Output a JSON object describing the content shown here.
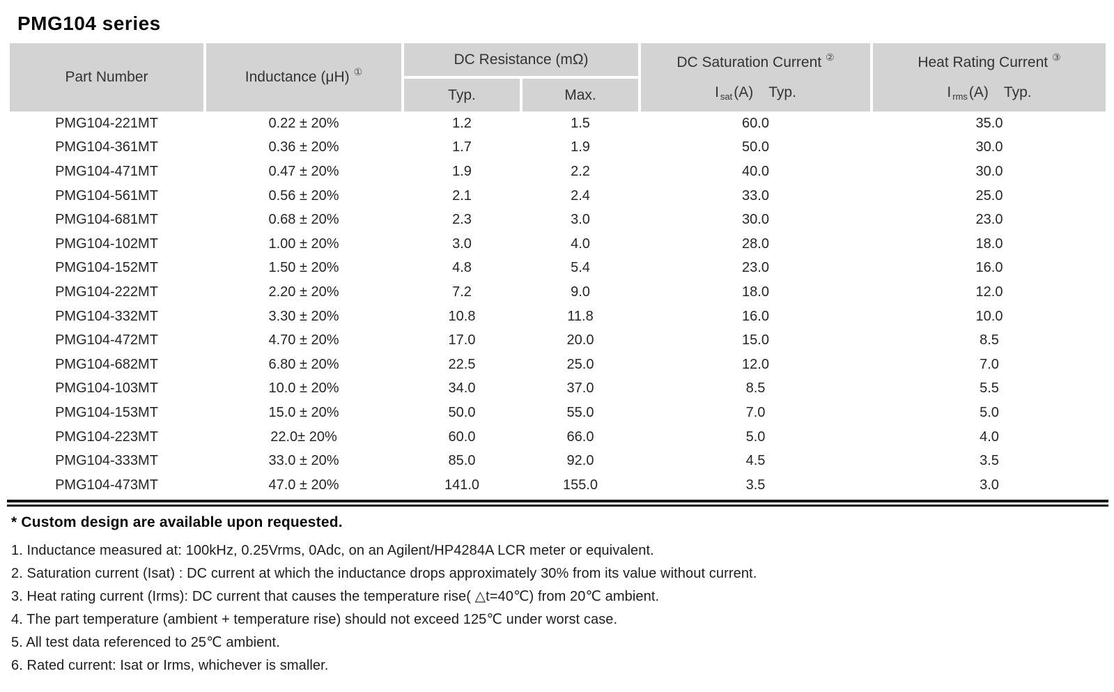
{
  "title": "PMG104 series",
  "table": {
    "columns": {
      "part_number": "Part Number",
      "inductance": {
        "label": "Inductance (μH)",
        "note_ref": "①"
      },
      "dc_resistance": {
        "label": "DC Resistance (mΩ)",
        "typ": "Typ.",
        "max": "Max."
      },
      "saturation": {
        "label": "DC Saturation Current",
        "note_ref": "②",
        "symbol": "I",
        "symbol_sub": "sat",
        "unit": "(A)",
        "qualifier": "Typ."
      },
      "heat": {
        "label": "Heat Rating Current",
        "note_ref": "③",
        "symbol": "I",
        "symbol_sub": "rms",
        "unit": "(A)",
        "qualifier": "Typ."
      }
    },
    "rows": [
      {
        "part": "PMG104-221MT",
        "inductance": "0.22 ± 20%",
        "typ": "1.2",
        "max": "1.5",
        "isat": "60.0",
        "irms": "35.0"
      },
      {
        "part": "PMG104-361MT",
        "inductance": "0.36 ± 20%",
        "typ": "1.7",
        "max": "1.9",
        "isat": "50.0",
        "irms": "30.0"
      },
      {
        "part": "PMG104-471MT",
        "inductance": "0.47 ± 20%",
        "typ": "1.9",
        "max": "2.2",
        "isat": "40.0",
        "irms": "30.0"
      },
      {
        "part": "PMG104-561MT",
        "inductance": "0.56 ± 20%",
        "typ": "2.1",
        "max": "2.4",
        "isat": "33.0",
        "irms": "25.0"
      },
      {
        "part": "PMG104-681MT",
        "inductance": "0.68 ± 20%",
        "typ": "2.3",
        "max": "3.0",
        "isat": "30.0",
        "irms": "23.0"
      },
      {
        "part": "PMG104-102MT",
        "inductance": "1.00 ± 20%",
        "typ": "3.0",
        "max": "4.0",
        "isat": "28.0",
        "irms": "18.0"
      },
      {
        "part": "PMG104-152MT",
        "inductance": "1.50 ± 20%",
        "typ": "4.8",
        "max": "5.4",
        "isat": "23.0",
        "irms": "16.0"
      },
      {
        "part": "PMG104-222MT",
        "inductance": "2.20 ± 20%",
        "typ": "7.2",
        "max": "9.0",
        "isat": "18.0",
        "irms": "12.0"
      },
      {
        "part": "PMG104-332MT",
        "inductance": "3.30 ± 20%",
        "typ": "10.8",
        "max": "11.8",
        "isat": "16.0",
        "irms": "10.0"
      },
      {
        "part": "PMG104-472MT",
        "inductance": "4.70 ± 20%",
        "typ": "17.0",
        "max": "20.0",
        "isat": "15.0",
        "irms": "8.5"
      },
      {
        "part": "PMG104-682MT",
        "inductance": "6.80 ± 20%",
        "typ": "22.5",
        "max": "25.0",
        "isat": "12.0",
        "irms": "7.0"
      },
      {
        "part": "PMG104-103MT",
        "inductance": "10.0 ± 20%",
        "typ": "34.0",
        "max": "37.0",
        "isat": "8.5",
        "irms": "5.5"
      },
      {
        "part": "PMG104-153MT",
        "inductance": "15.0 ± 20%",
        "typ": "50.0",
        "max": "55.0",
        "isat": "7.0",
        "irms": "5.0"
      },
      {
        "part": "PMG104-223MT",
        "inductance": "22.0± 20%",
        "typ": "60.0",
        "max": "66.0",
        "isat": "5.0",
        "irms": "4.0"
      },
      {
        "part": "PMG104-333MT",
        "inductance": "33.0 ± 20%",
        "typ": "85.0",
        "max": "92.0",
        "isat": "4.5",
        "irms": "3.5"
      },
      {
        "part": "PMG104-473MT",
        "inductance": "47.0 ± 20%",
        "typ": "141.0",
        "max": "155.0",
        "isat": "3.5",
        "irms": "3.0"
      }
    ]
  },
  "footnotes": {
    "star": "* Custom design are available upon requested.",
    "items": [
      "1. Inductance measured at: 100kHz, 0.25Vrms, 0Adc, on an Agilent/HP4284A LCR meter or equivalent.",
      "2. Saturation current (Isat) : DC current at which the inductance drops approximately 30% from its value without current.",
      "3. Heat rating current (Irms): DC current that causes the temperature rise( △t=40℃) from 20℃ ambient.",
      "4. The part temperature (ambient + temperature rise) should not exceed 125℃ under worst case.",
      "5. All test data referenced to 25℃ ambient.",
      "6. Rated current: Isat or Irms, whichever is smaller."
    ]
  },
  "colors": {
    "header_bg": "#d3d3d3",
    "rule": "#151515",
    "text": "#262626"
  }
}
